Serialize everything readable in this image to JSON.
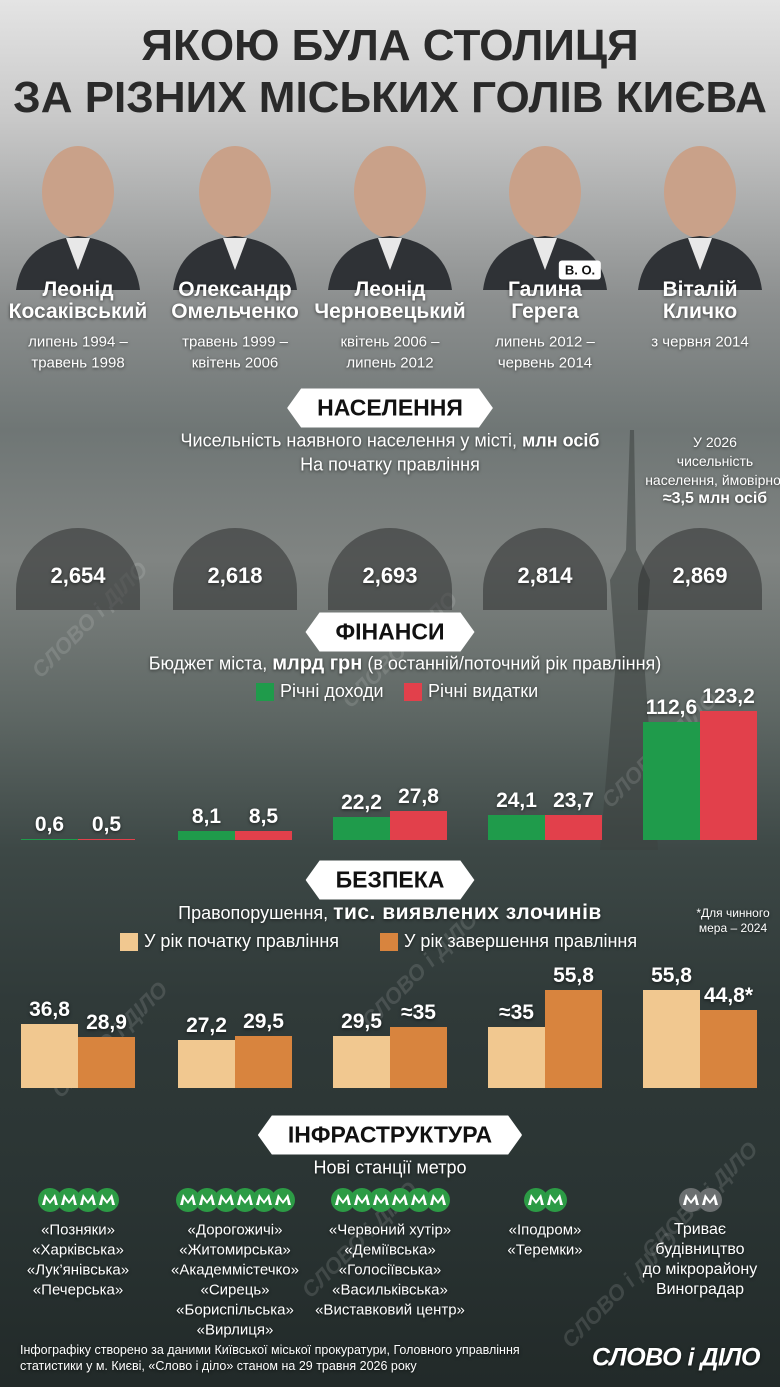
{
  "title": {
    "line1": "ЯКОЮ БУЛА СТОЛИЦЯ",
    "line2": "ЗА РІЗНИХ МІСЬКИХ ГОЛІВ КИЄВА"
  },
  "mayors": [
    {
      "first": "Леонід",
      "last": "Косаківський",
      "term": [
        "липень 1994 –",
        "травень 1998"
      ]
    },
    {
      "first": "Олександр",
      "last": "Омельченко",
      "term": [
        "травень 1999 –",
        "квітень 2006"
      ]
    },
    {
      "first": "Леонід",
      "last": "Черновецький",
      "term": [
        "квітень 2006 –",
        "липень 2012"
      ]
    },
    {
      "first": "Галина",
      "last": "Герега",
      "badge": "В. О.",
      "term": [
        "липень 2012 –",
        "червень 2014"
      ]
    },
    {
      "first": "Віталій",
      "last": "Кличко",
      "term": [
        "з червня 2014"
      ]
    }
  ],
  "population": {
    "heading": "НАСЕЛЕННЯ",
    "subtitle": "Чисельність наявного населення у місті, ",
    "subtitle_bold": "млн осіб",
    "note": "На початку правління",
    "values": [
      2.654,
      2.618,
      2.693,
      2.814,
      2.869
    ],
    "value_labels": [
      "2,654",
      "2,618",
      "2,693",
      "2,814",
      "2,869"
    ],
    "forecast": [
      "У 2026",
      "чисельність",
      "населення, ймовірно,"
    ],
    "forecast_bold": "≈3,5 млн осіб"
  },
  "finance": {
    "heading": "ФІНАНСИ",
    "subtitle": "Бюджет міста, ",
    "subtitle_bold": "млрд грн",
    "subtitle_end": " (в останній/поточний рік правління)",
    "series": [
      {
        "name": "Річні доходи",
        "color": "#1f9b4b",
        "values": [
          0.6,
          8.1,
          22.2,
          24.1,
          112.6
        ],
        "value_labels": [
          "0,6",
          "8,1",
          "22,2",
          "24,1",
          "112,6"
        ]
      },
      {
        "name": "Річні видатки",
        "color": "#e2404b",
        "values": [
          0.5,
          8.5,
          27.8,
          23.7,
          123.2
        ],
        "value_labels": [
          "0,5",
          "8,5",
          "27,8",
          "23,7",
          "123,2"
        ]
      }
    ]
  },
  "safety": {
    "heading": "БЕЗПЕКА",
    "subtitle": "Правопорушення, ",
    "subtitle_bold": "тис. виявлених злочинів",
    "note": "*Для чинного мера – 2024",
    "series": [
      {
        "name": "У рік початку правління",
        "color": "#f1c890",
        "values": [
          36.8,
          27.2,
          29.5,
          35,
          55.8
        ],
        "value_labels": [
          "36,8",
          "27,2",
          "29,5",
          "≈35",
          "55,8"
        ]
      },
      {
        "name": "У рік завершення правління",
        "color": "#d8843e",
        "values": [
          28.9,
          29.5,
          35,
          55.8,
          44.8
        ],
        "value_labels": [
          "28,9",
          "29,5",
          "≈35",
          "55,8",
          "44,8*"
        ]
      }
    ]
  },
  "infrastructure": {
    "heading": "ІНФРАСТРУКТУРА",
    "subtitle": "Нові станції метро",
    "columns": [
      [
        "«Позняки»",
        "«Харківська»",
        "«Лук’янівська»",
        "«Печерська»"
      ],
      [
        "«Дорогожичі»",
        "«Житомирська»",
        "«Академмістечко»",
        "«Сирець»",
        "«Бориспільська»",
        "«Вирлиця»"
      ],
      [
        "«Червоний хутір»",
        "«Деміївська»",
        "«Голосіївська»",
        "«Васильківська»",
        "«Виставковий центр»"
      ],
      [
        "«Іподром»",
        "«Теремки»"
      ]
    ],
    "construction": [
      "Триває",
      "будівництво",
      "до мікрорайону",
      "Виноградар"
    ]
  },
  "footer": {
    "source": "Інфографіку створено за даними Київської міської прокуратури, Головного управління статистики у м. Києві, «Слово і діло» станом на 29 травня 2026 року",
    "logo": "СЛОВО і ДІЛО"
  }
}
